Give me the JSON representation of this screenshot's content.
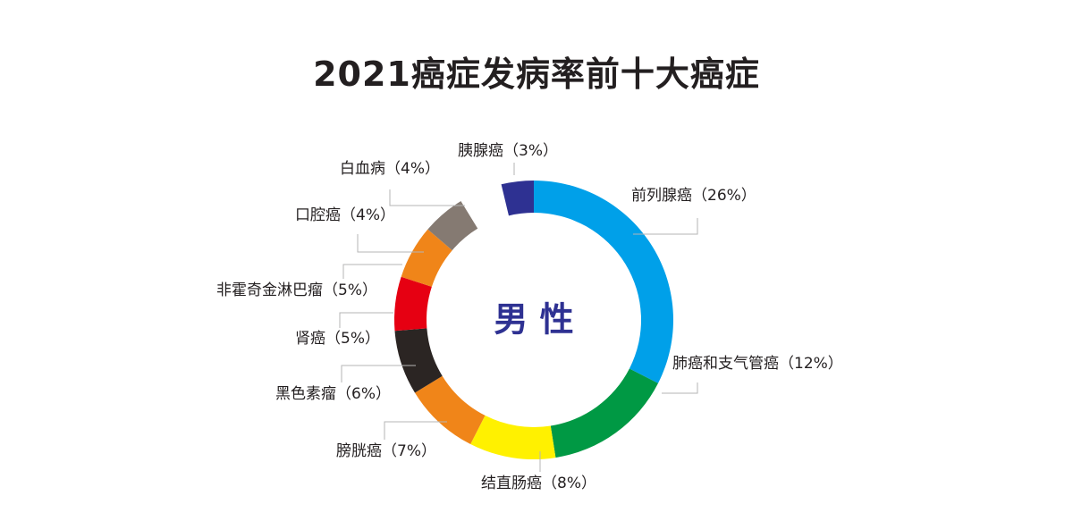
{
  "chart_data": {
    "type": "pie",
    "title": "2021癌症发病率前十大癌症",
    "center_label": "男 性",
    "colors": {
      "title": "#231f20",
      "center_label": "#2e3192"
    },
    "slices": [
      {
        "label": "前列腺癌（26%）",
        "value": 26,
        "color": "#00a0e9"
      },
      {
        "label": "肺癌和支气管癌（12%）",
        "value": 12,
        "color": "#009944"
      },
      {
        "label": "结直肠癌（8%）",
        "value": 8,
        "color": "#fff100"
      },
      {
        "label": "膀胱癌（7%）",
        "value": 7,
        "color": "#f08519"
      },
      {
        "label": "黑色素瘤（6%）",
        "value": 6,
        "color": "#2b2523"
      },
      {
        "label": "肾癌（5%）",
        "value": 5,
        "color": "#e60012"
      },
      {
        "label": "非霍奇金淋巴瘤（5%）",
        "value": 5,
        "color": "#f08519"
      },
      {
        "label": "口腔癌（4%）",
        "value": 4,
        "color": "#857a72"
      },
      {
        "label": "白血病（4%）",
        "value": 4,
        "color": "#ffffff"
      },
      {
        "label": "胰腺癌（3%）",
        "value": 3,
        "color": "#2e3192"
      }
    ]
  }
}
